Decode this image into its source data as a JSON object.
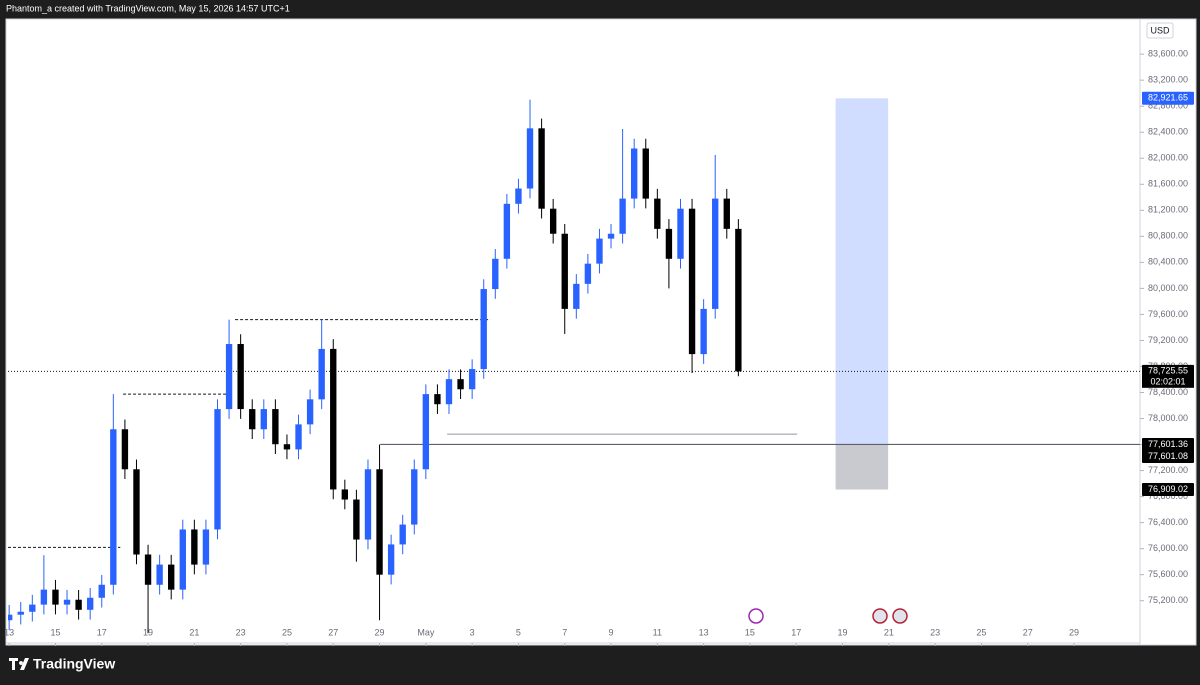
{
  "header": {
    "text": "Phantom_a created with TradingView.com, May 15, 2026 14:57 UTC+1"
  },
  "footer": {
    "brand": "TradingView"
  },
  "chart_data": {
    "type": "candlestick",
    "currency": "USD",
    "up_color": "#2962ff",
    "down_color": "#000000",
    "x": [
      0,
      0.5,
      1,
      1.5,
      2,
      2.5,
      3,
      3.5,
      4,
      4.5,
      5,
      5.5,
      6,
      6.5,
      7,
      7.5,
      8,
      8.5,
      9,
      9.5,
      10,
      10.5,
      11,
      11.5,
      12,
      12.5,
      13,
      13.5,
      14,
      14.5,
      15,
      15.5,
      16,
      16.5,
      17,
      17.5,
      18,
      18.5,
      19,
      19.5,
      20,
      20.5,
      21,
      21.5,
      22,
      22.5,
      23,
      23.5,
      24,
      24.5,
      25,
      25.5,
      26,
      26.5,
      27,
      27.5,
      28,
      28.5,
      29,
      29.5,
      30,
      30.5,
      31,
      31.5
    ],
    "open": [
      74900,
      74985,
      75030,
      75140,
      75370,
      75140,
      75215,
      75060,
      75245,
      75445,
      77835,
      77220,
      75910,
      75445,
      75755,
      75370,
      76295,
      75755,
      76295,
      78145,
      79145,
      78145,
      77835,
      78145,
      77605,
      77525,
      77910,
      78295,
      79070,
      76910,
      76755,
      76140,
      77220,
      75600,
      76065,
      76370,
      77220,
      78375,
      78220,
      78605,
      78450,
      78760,
      79990,
      80455,
      81300,
      81535,
      82460,
      81225,
      80840,
      79685,
      80070,
      80380,
      80765,
      80840,
      81380,
      82150,
      81380,
      80915,
      80455,
      81225,
      78990,
      79685,
      81380,
      80915
    ],
    "high": [
      75135,
      75180,
      75290,
      75900,
      75520,
      75365,
      75365,
      75395,
      75595,
      78375,
      77985,
      77370,
      76060,
      75905,
      75905,
      76445,
      76445,
      76445,
      78295,
      79520,
      79295,
      78295,
      78295,
      78295,
      77755,
      78060,
      78445,
      79520,
      79220,
      77060,
      76905,
      77370,
      77600,
      76215,
      76520,
      77370,
      78525,
      78525,
      78755,
      78755,
      78910,
      80140,
      80605,
      81450,
      81685,
      82900,
      82610,
      81375,
      80990,
      80220,
      80530,
      80915,
      80990,
      82450,
      82300,
      82300,
      81530,
      81065,
      81375,
      81375,
      79835,
      82050,
      81530,
      81065
    ],
    "low": [
      74750,
      74835,
      74880,
      74990,
      74990,
      74990,
      74910,
      74910,
      75095,
      75295,
      77070,
      75760,
      74700,
      75295,
      75220,
      75220,
      75605,
      75605,
      76145,
      77995,
      77995,
      77685,
      77685,
      77455,
      77375,
      77375,
      77760,
      78145,
      76760,
      76605,
      75800,
      75990,
      74900,
      75450,
      75915,
      76220,
      77070,
      78070,
      78070,
      78300,
      78300,
      78610,
      79840,
      80305,
      81150,
      81385,
      81075,
      80690,
      79300,
      79535,
      79920,
      80230,
      80615,
      80690,
      81230,
      81230,
      80765,
      80000,
      80305,
      78700,
      78840,
      79535,
      80765,
      78650
    ],
    "close": [
      74985,
      75030,
      75140,
      75370,
      75140,
      75215,
      75060,
      75245,
      75445,
      77835,
      77220,
      75910,
      75445,
      75755,
      75370,
      76295,
      75755,
      76295,
      78145,
      79145,
      78145,
      77835,
      78145,
      77605,
      77525,
      77910,
      78295,
      79070,
      76910,
      76755,
      76140,
      77220,
      75600,
      76065,
      76370,
      77220,
      78375,
      78220,
      78605,
      78450,
      78760,
      79990,
      80455,
      81300,
      81535,
      82460,
      81225,
      80840,
      79685,
      80070,
      80380,
      80765,
      80840,
      81380,
      82150,
      81380,
      80915,
      80455,
      81225,
      78990,
      79685,
      81380,
      80915,
      78725
    ],
    "xlim": [
      -0.05,
      48.85
    ],
    "ylim": [
      74550,
      84125
    ],
    "xticks": [
      {
        "value": 0,
        "label": "13"
      },
      {
        "value": 2,
        "label": "15"
      },
      {
        "value": 4,
        "label": "17"
      },
      {
        "value": 6,
        "label": "19"
      },
      {
        "value": 8,
        "label": "21"
      },
      {
        "value": 10,
        "label": "23"
      },
      {
        "value": 12,
        "label": "25"
      },
      {
        "value": 14,
        "label": "27"
      },
      {
        "value": 16,
        "label": "29"
      },
      {
        "value": 18,
        "label": "May"
      },
      {
        "value": 20,
        "label": "3"
      },
      {
        "value": 22,
        "label": "5"
      },
      {
        "value": 24,
        "label": "7"
      },
      {
        "value": 26,
        "label": "9"
      },
      {
        "value": 28,
        "label": "11"
      },
      {
        "value": 30,
        "label": "13"
      },
      {
        "value": 32,
        "label": "15"
      },
      {
        "value": 34,
        "label": "17"
      },
      {
        "value": 36,
        "label": "19"
      },
      {
        "value": 38,
        "label": "21"
      },
      {
        "value": 40,
        "label": "23"
      },
      {
        "value": 42,
        "label": "25"
      },
      {
        "value": 44,
        "label": "27"
      },
      {
        "value": 46,
        "label": "29"
      }
    ],
    "yticks": [
      {
        "value": 75200,
        "label": "75,200.00"
      },
      {
        "value": 75600,
        "label": "75,600.00"
      },
      {
        "value": 76000,
        "label": "76,000.00"
      },
      {
        "value": 76400,
        "label": "76,400.00"
      },
      {
        "value": 76800,
        "label": "76,800.00"
      },
      {
        "value": 77200,
        "label": "77,200.00"
      },
      {
        "value": 77600,
        "label": "77,600.00"
      },
      {
        "value": 78000,
        "label": "78,000.00"
      },
      {
        "value": 78400,
        "label": "78,400.00"
      },
      {
        "value": 78800,
        "label": "78,800.00"
      },
      {
        "value": 79200,
        "label": "79,200.00"
      },
      {
        "value": 79600,
        "label": "79,600.00"
      },
      {
        "value": 80000,
        "label": "80,000.00"
      },
      {
        "value": 80400,
        "label": "80,400.00"
      },
      {
        "value": 80800,
        "label": "80,800.00"
      },
      {
        "value": 81200,
        "label": "81,200.00"
      },
      {
        "value": 81600,
        "label": "81,600.00"
      },
      {
        "value": 82000,
        "label": "82,000.00"
      },
      {
        "value": 82400,
        "label": "82,400.00"
      },
      {
        "value": 82800,
        "label": "82,800.00"
      },
      {
        "value": 83200,
        "label": "83,200.00"
      },
      {
        "value": 83600,
        "label": "83,600.00"
      }
    ],
    "dashed_levels": [
      {
        "value": 76020,
        "x": [
          -0.05,
          4.8
        ]
      },
      {
        "value": 78375,
        "x": [
          4.92,
          9.46
        ]
      },
      {
        "value": 79520,
        "x": [
          9.76,
          20.78
        ]
      }
    ],
    "thin_level": {
      "value": 77760,
      "x": [
        18.92,
        34.04
      ]
    },
    "entry_line": {
      "value": 77601.36,
      "x": [
        16.03,
        48.85
      ]
    },
    "last_price_line": {
      "value": 78725.55
    },
    "position": {
      "x": [
        35.7,
        37.97
      ],
      "entry": 77601.36,
      "target": 82921.65,
      "stop": 76909.02
    },
    "price_labels": [
      {
        "value": 82921.65,
        "label": "82,921.65",
        "color": "#2962ff"
      },
      {
        "value": 78725.55,
        "label": "78,725.55",
        "color": "#000000"
      },
      {
        "value": 77601.36,
        "label": "77,601.36",
        "color": "#000000"
      },
      {
        "value": 77601.08,
        "label": "77,601.08",
        "color": "#000000"
      },
      {
        "value": 76909.02,
        "label": "76,909.02",
        "color": "#000000"
      }
    ],
    "countdown": "02:02:01"
  }
}
